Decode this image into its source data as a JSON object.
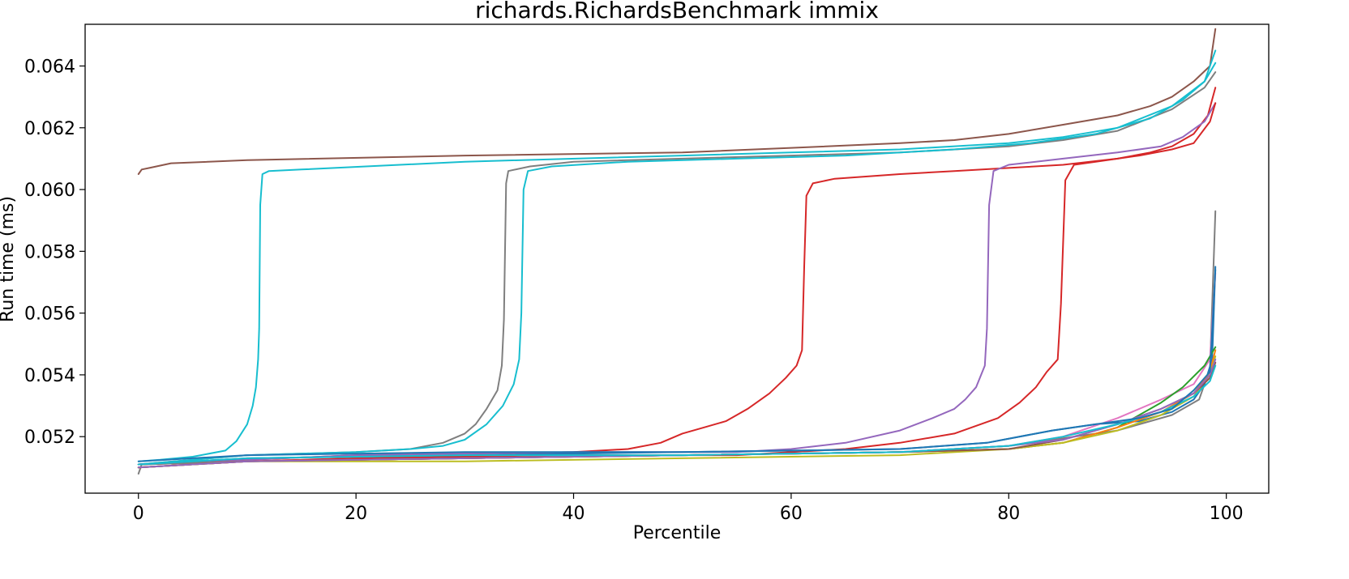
{
  "chart_data": {
    "type": "line",
    "title": "richards.RichardsBenchmark immix",
    "xlabel": "Percentile",
    "ylabel": "Run time (ms)",
    "xlim": [
      -4.9,
      103.9
    ],
    "ylim": [
      0.05017,
      0.06535
    ],
    "x_ticks": [
      0,
      20,
      40,
      60,
      80,
      100
    ],
    "x_tick_labels": [
      "0",
      "20",
      "40",
      "60",
      "80",
      "100"
    ],
    "y_ticks": [
      0.052,
      0.054,
      0.056,
      0.058,
      0.06,
      0.062,
      0.064
    ],
    "y_tick_labels": [
      "0.052",
      "0.054",
      "0.056",
      "0.058",
      "0.060",
      "0.062",
      "0.064"
    ],
    "grid": false,
    "legend": "none",
    "series": [
      {
        "color": "#8c564b",
        "points": [
          [
            0,
            0.0605
          ],
          [
            0.3,
            0.06065
          ],
          [
            1,
            0.0607
          ],
          [
            3,
            0.06085
          ],
          [
            10,
            0.06095
          ],
          [
            30,
            0.0611
          ],
          [
            50,
            0.0612
          ],
          [
            60,
            0.06135
          ],
          [
            70,
            0.0615
          ],
          [
            75,
            0.0616
          ],
          [
            80,
            0.0618
          ],
          [
            85,
            0.0621
          ],
          [
            90,
            0.0624
          ],
          [
            93,
            0.0627
          ],
          [
            95,
            0.063
          ],
          [
            97,
            0.0635
          ],
          [
            98.5,
            0.064
          ],
          [
            99,
            0.0652
          ]
        ]
      },
      {
        "color": "#17becf",
        "points": [
          [
            0,
            0.0512
          ],
          [
            2,
            0.05125
          ],
          [
            5,
            0.05135
          ],
          [
            8,
            0.05155
          ],
          [
            9,
            0.05185
          ],
          [
            10,
            0.0524
          ],
          [
            10.5,
            0.053
          ],
          [
            10.8,
            0.0536
          ],
          [
            11,
            0.0545
          ],
          [
            11.1,
            0.0555
          ],
          [
            11.2,
            0.0595
          ],
          [
            11.4,
            0.0605
          ],
          [
            12,
            0.0606
          ],
          [
            15,
            0.06065
          ],
          [
            30,
            0.0609
          ],
          [
            50,
            0.0611
          ],
          [
            60,
            0.0612
          ],
          [
            70,
            0.0613
          ],
          [
            80,
            0.0615
          ],
          [
            85,
            0.0617
          ],
          [
            90,
            0.062
          ],
          [
            95,
            0.0627
          ],
          [
            98,
            0.0635
          ],
          [
            99,
            0.0645
          ]
        ]
      },
      {
        "color": "#7f7f7f",
        "points": [
          [
            0,
            0.0511
          ],
          [
            10,
            0.0514
          ],
          [
            20,
            0.0515
          ],
          [
            25,
            0.0516
          ],
          [
            28,
            0.0518
          ],
          [
            30,
            0.0521
          ],
          [
            31,
            0.0524
          ],
          [
            32,
            0.0529
          ],
          [
            33,
            0.0535
          ],
          [
            33.4,
            0.0543
          ],
          [
            33.6,
            0.0558
          ],
          [
            33.8,
            0.0602
          ],
          [
            34,
            0.0606
          ],
          [
            36,
            0.06075
          ],
          [
            40,
            0.0609
          ],
          [
            50,
            0.061
          ],
          [
            60,
            0.0611
          ],
          [
            70,
            0.0612
          ],
          [
            80,
            0.0614
          ],
          [
            85,
            0.0616
          ],
          [
            90,
            0.0619
          ],
          [
            95,
            0.0626
          ],
          [
            98,
            0.0633
          ],
          [
            99,
            0.0638
          ]
        ]
      },
      {
        "color": "#17becf",
        "points": [
          [
            0,
            0.0511
          ],
          [
            10,
            0.0514
          ],
          [
            20,
            0.0515
          ],
          [
            25,
            0.0516
          ],
          [
            28,
            0.0517
          ],
          [
            30,
            0.0519
          ],
          [
            32,
            0.0524
          ],
          [
            33.5,
            0.053
          ],
          [
            34.5,
            0.0537
          ],
          [
            35,
            0.0545
          ],
          [
            35.2,
            0.056
          ],
          [
            35.4,
            0.06
          ],
          [
            35.8,
            0.0606
          ],
          [
            38,
            0.06075
          ],
          [
            45,
            0.0609
          ],
          [
            55,
            0.061
          ],
          [
            65,
            0.0611
          ],
          [
            75,
            0.0613
          ],
          [
            82,
            0.0615
          ],
          [
            88,
            0.0618
          ],
          [
            93,
            0.0623
          ],
          [
            96,
            0.0629
          ],
          [
            98,
            0.0635
          ],
          [
            99,
            0.0641
          ]
        ]
      },
      {
        "color": "#d62728",
        "points": [
          [
            0,
            0.0511
          ],
          [
            20,
            0.0514
          ],
          [
            40,
            0.0515
          ],
          [
            45,
            0.0516
          ],
          [
            48,
            0.0518
          ],
          [
            50,
            0.0521
          ],
          [
            52,
            0.0523
          ],
          [
            54,
            0.0525
          ],
          [
            56,
            0.0529
          ],
          [
            58,
            0.0534
          ],
          [
            59.5,
            0.0539
          ],
          [
            60.5,
            0.0543
          ],
          [
            61,
            0.0548
          ],
          [
            61.2,
            0.0575
          ],
          [
            61.4,
            0.0598
          ],
          [
            62,
            0.0602
          ],
          [
            64,
            0.06035
          ],
          [
            70,
            0.0605
          ],
          [
            75,
            0.0606
          ],
          [
            80,
            0.0607
          ],
          [
            85,
            0.0608
          ],
          [
            90,
            0.061
          ],
          [
            93,
            0.0612
          ],
          [
            95,
            0.0614
          ],
          [
            97,
            0.0618
          ],
          [
            98.3,
            0.0624
          ],
          [
            99,
            0.0633
          ]
        ]
      },
      {
        "color": "#9467bd",
        "points": [
          [
            0,
            0.0511
          ],
          [
            20,
            0.0514
          ],
          [
            40,
            0.0515
          ],
          [
            55,
            0.0515
          ],
          [
            60,
            0.0516
          ],
          [
            65,
            0.0518
          ],
          [
            70,
            0.0522
          ],
          [
            73,
            0.0526
          ],
          [
            75,
            0.0529
          ],
          [
            76,
            0.0532
          ],
          [
            77,
            0.0536
          ],
          [
            77.8,
            0.0543
          ],
          [
            78,
            0.0555
          ],
          [
            78.2,
            0.0595
          ],
          [
            78.6,
            0.0606
          ],
          [
            80,
            0.0608
          ],
          [
            85,
            0.061
          ],
          [
            90,
            0.0612
          ],
          [
            94,
            0.0614
          ],
          [
            96,
            0.0617
          ],
          [
            98,
            0.0622
          ],
          [
            99,
            0.0628
          ]
        ]
      },
      {
        "color": "#d62728",
        "points": [
          [
            0,
            0.0511
          ],
          [
            20,
            0.0513
          ],
          [
            40,
            0.0514
          ],
          [
            55,
            0.0514
          ],
          [
            60,
            0.0515
          ],
          [
            65,
            0.0516
          ],
          [
            70,
            0.0518
          ],
          [
            75,
            0.0521
          ],
          [
            79,
            0.0526
          ],
          [
            81,
            0.0531
          ],
          [
            82.5,
            0.0536
          ],
          [
            83.5,
            0.0541
          ],
          [
            84.5,
            0.0545
          ],
          [
            84.8,
            0.0563
          ],
          [
            85.2,
            0.0603
          ],
          [
            86,
            0.0608
          ],
          [
            88,
            0.0609
          ],
          [
            92,
            0.0611
          ],
          [
            95,
            0.0613
          ],
          [
            97,
            0.0615
          ],
          [
            98.5,
            0.0622
          ],
          [
            99,
            0.0628
          ]
        ]
      },
      {
        "color": "#7f7f7f",
        "points": [
          [
            0,
            0.0508
          ],
          [
            0.3,
            0.0511
          ],
          [
            10,
            0.0512
          ],
          [
            30,
            0.0513
          ],
          [
            50,
            0.0514
          ],
          [
            70,
            0.0515
          ],
          [
            80,
            0.0517
          ],
          [
            90,
            0.0522
          ],
          [
            95,
            0.0527
          ],
          [
            97.5,
            0.0532
          ],
          [
            98.5,
            0.0542
          ],
          [
            99,
            0.0593
          ]
        ]
      },
      {
        "color": "#1f77b4",
        "points": [
          [
            0,
            0.0511
          ],
          [
            10,
            0.0513
          ],
          [
            30,
            0.0514
          ],
          [
            50,
            0.0515
          ],
          [
            70,
            0.0516
          ],
          [
            78,
            0.0518
          ],
          [
            84,
            0.0522
          ],
          [
            88,
            0.0524
          ],
          [
            92,
            0.0525
          ],
          [
            95,
            0.0528
          ],
          [
            97,
            0.0532
          ],
          [
            98,
            0.0537
          ],
          [
            98.7,
            0.0545
          ],
          [
            99,
            0.0575
          ]
        ]
      },
      {
        "color": "#e377c2",
        "points": [
          [
            0,
            0.051
          ],
          [
            10,
            0.0512
          ],
          [
            30,
            0.0513
          ],
          [
            50,
            0.0514
          ],
          [
            70,
            0.0515
          ],
          [
            80,
            0.0517
          ],
          [
            85,
            0.052
          ],
          [
            90,
            0.0526
          ],
          [
            94,
            0.0532
          ],
          [
            97,
            0.0537
          ],
          [
            98.5,
            0.0545
          ],
          [
            99,
            0.0573
          ]
        ]
      },
      {
        "color": "#2ca02c",
        "points": [
          [
            0,
            0.051
          ],
          [
            10,
            0.0512
          ],
          [
            30,
            0.0513
          ],
          [
            50,
            0.0514
          ],
          [
            70,
            0.0515
          ],
          [
            80,
            0.0516
          ],
          [
            85,
            0.0518
          ],
          [
            90,
            0.0523
          ],
          [
            94,
            0.0531
          ],
          [
            96,
            0.0536
          ],
          [
            98,
            0.0543
          ],
          [
            99,
            0.0549
          ]
        ]
      },
      {
        "color": "#ff7f0e",
        "points": [
          [
            0,
            0.051
          ],
          [
            10,
            0.0512
          ],
          [
            30,
            0.0513
          ],
          [
            50,
            0.0514
          ],
          [
            70,
            0.0515
          ],
          [
            80,
            0.0516
          ],
          [
            85,
            0.0518
          ],
          [
            90,
            0.0523
          ],
          [
            94,
            0.0528
          ],
          [
            97,
            0.0534
          ],
          [
            98.5,
            0.0541
          ],
          [
            99,
            0.0548
          ]
        ]
      },
      {
        "color": "#bcbd22",
        "points": [
          [
            0,
            0.051
          ],
          [
            10,
            0.0512
          ],
          [
            30,
            0.0512
          ],
          [
            50,
            0.0513
          ],
          [
            70,
            0.0514
          ],
          [
            80,
            0.0516
          ],
          [
            85,
            0.0518
          ],
          [
            90,
            0.0522
          ],
          [
            94,
            0.0527
          ],
          [
            97,
            0.0533
          ],
          [
            98.5,
            0.054
          ],
          [
            99,
            0.0546
          ]
        ]
      },
      {
        "color": "#8c564b",
        "points": [
          [
            0,
            0.051
          ],
          [
            10,
            0.0512
          ],
          [
            30,
            0.0513
          ],
          [
            50,
            0.0514
          ],
          [
            70,
            0.0515
          ],
          [
            80,
            0.0516
          ],
          [
            85,
            0.0519
          ],
          [
            90,
            0.0524
          ],
          [
            94,
            0.0529
          ],
          [
            97,
            0.0534
          ],
          [
            98.5,
            0.0539
          ],
          [
            99,
            0.0544
          ]
        ]
      },
      {
        "color": "#9467bd",
        "points": [
          [
            0,
            0.051
          ],
          [
            10,
            0.0512
          ],
          [
            30,
            0.0513
          ],
          [
            50,
            0.0514
          ],
          [
            70,
            0.0515
          ],
          [
            80,
            0.0517
          ],
          [
            85,
            0.0519
          ],
          [
            90,
            0.0524
          ],
          [
            94,
            0.0529
          ],
          [
            97,
            0.0534
          ],
          [
            98.5,
            0.054
          ],
          [
            99,
            0.0545
          ]
        ]
      },
      {
        "color": "#17becf",
        "points": [
          [
            0,
            0.0511
          ],
          [
            10,
            0.0513
          ],
          [
            30,
            0.0514
          ],
          [
            50,
            0.0514
          ],
          [
            70,
            0.0515
          ],
          [
            80,
            0.0517
          ],
          [
            85,
            0.052
          ],
          [
            90,
            0.0524
          ],
          [
            94,
            0.0528
          ],
          [
            97,
            0.0533
          ],
          [
            98.5,
            0.0538
          ],
          [
            99,
            0.0543
          ]
        ]
      },
      {
        "color": "#1f77b4",
        "points": [
          [
            0,
            0.0512
          ],
          [
            10,
            0.0514
          ],
          [
            30,
            0.0515
          ],
          [
            50,
            0.0515
          ],
          [
            70,
            0.0516
          ],
          [
            78,
            0.0518
          ],
          [
            84,
            0.0522
          ],
          [
            88,
            0.0524
          ],
          [
            92,
            0.0526
          ],
          [
            95,
            0.0529
          ],
          [
            97,
            0.0535
          ],
          [
            98.5,
            0.0541
          ],
          [
            99,
            0.0574
          ]
        ]
      }
    ]
  }
}
